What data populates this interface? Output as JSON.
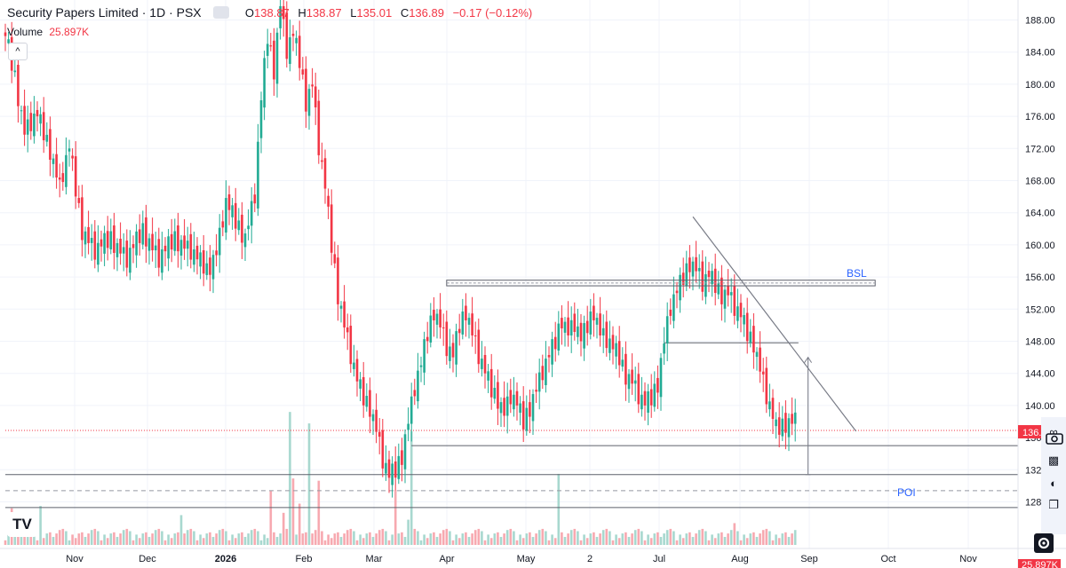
{
  "legend": {
    "symbol_title": "Security Papers Limited · 1D · PSX",
    "open_label": "O",
    "open": "138.87",
    "high_label": "H",
    "high": "138.87",
    "low_label": "L",
    "low": "135.01",
    "close_label": "C",
    "close": "136.89",
    "change": "−0.17 (−0.12%)",
    "volume_label": "Volume",
    "volume_value": "25.897K"
  },
  "collapse_label": "^",
  "logo_text": "TV",
  "colors": {
    "up": "#22ab94",
    "down": "#f23645",
    "up_volume": "#a8d8cf",
    "down_volume": "#f7a9b0",
    "grid": "#f0f3fa",
    "axis_text": "#131722",
    "annotation_blue": "#2962ff",
    "drawing_line": "#787b86"
  },
  "annotations": {
    "bsl": "BSL",
    "poi": "POI"
  },
  "price_badges": {
    "last_price": "136.",
    "last_volume": "25.897K"
  },
  "chart_data": {
    "type": "candlestick",
    "title": "Security Papers Limited · 1D · PSX",
    "ylim": [
      123,
      190
    ],
    "y_ticks": [
      188,
      184,
      180,
      176,
      172,
      168,
      164,
      160,
      156,
      152,
      148,
      144,
      140,
      136,
      132,
      128
    ],
    "y_tick_labels": [
      "188.00",
      "184.00",
      "180.00",
      "176.00",
      "172.00",
      "168.00",
      "164.00",
      "160.00",
      "156.00",
      "152.00",
      "148.00",
      "144.00",
      "140.00",
      "136.",
      "132.00",
      "128.00"
    ],
    "x_tick_labels": [
      "Nov",
      "Dec",
      "2026",
      "Feb",
      "Mar",
      "Apr",
      "May",
      "2",
      "Jul",
      "Aug",
      "Sep",
      "Oct",
      "Nov"
    ],
    "anchors": [
      [
        0,
        186
      ],
      [
        3,
        181
      ],
      [
        6,
        174
      ],
      [
        10,
        176
      ],
      [
        14,
        172
      ],
      [
        17,
        167
      ],
      [
        20,
        172
      ],
      [
        24,
        162
      ],
      [
        28,
        159
      ],
      [
        33,
        161
      ],
      [
        38,
        158
      ],
      [
        43,
        162
      ],
      [
        48,
        158
      ],
      [
        53,
        161
      ],
      [
        58,
        159
      ],
      [
        63,
        157
      ],
      [
        66,
        159
      ],
      [
        69,
        165
      ],
      [
        72,
        163
      ],
      [
        75,
        161
      ],
      [
        78,
        166
      ],
      [
        80,
        178
      ],
      [
        82,
        186
      ],
      [
        84,
        182
      ],
      [
        86,
        190
      ],
      [
        88,
        184
      ],
      [
        90,
        186
      ],
      [
        92,
        183
      ],
      [
        94,
        178
      ],
      [
        96,
        180
      ],
      [
        98,
        172
      ],
      [
        100,
        167
      ],
      [
        102,
        160
      ],
      [
        104,
        154
      ],
      [
        106,
        150
      ],
      [
        108,
        146
      ],
      [
        110,
        143
      ],
      [
        112,
        141
      ],
      [
        114,
        140
      ],
      [
        116,
        137
      ],
      [
        118,
        133
      ],
      [
        120,
        131
      ],
      [
        122,
        132
      ],
      [
        124,
        134
      ],
      [
        126,
        138
      ],
      [
        128,
        142
      ],
      [
        130,
        145
      ],
      [
        132,
        149
      ],
      [
        134,
        152
      ],
      [
        136,
        150
      ],
      [
        138,
        147
      ],
      [
        140,
        146
      ],
      [
        142,
        150
      ],
      [
        144,
        152
      ],
      [
        146,
        149
      ],
      [
        148,
        146
      ],
      [
        150,
        144
      ],
      [
        152,
        142
      ],
      [
        154,
        141
      ],
      [
        156,
        139
      ],
      [
        158,
        141
      ],
      [
        160,
        140
      ],
      [
        162,
        138
      ],
      [
        164,
        140
      ],
      [
        166,
        142
      ],
      [
        168,
        144
      ],
      [
        170,
        146
      ],
      [
        172,
        148
      ],
      [
        174,
        151
      ],
      [
        176,
        149
      ],
      [
        178,
        150
      ],
      [
        180,
        148
      ],
      [
        182,
        150
      ],
      [
        184,
        152
      ],
      [
        186,
        149
      ],
      [
        188,
        148
      ],
      [
        190,
        147
      ],
      [
        192,
        146
      ],
      [
        194,
        144
      ],
      [
        196,
        143
      ],
      [
        198,
        141
      ],
      [
        200,
        140
      ],
      [
        202,
        141
      ],
      [
        204,
        143
      ],
      [
        206,
        148
      ],
      [
        208,
        152
      ],
      [
        210,
        154
      ],
      [
        212,
        156
      ],
      [
        214,
        158
      ],
      [
        216,
        157
      ],
      [
        218,
        155
      ],
      [
        220,
        156
      ],
      [
        222,
        155
      ],
      [
        224,
        154
      ],
      [
        226,
        154
      ],
      [
        228,
        152
      ],
      [
        230,
        151
      ],
      [
        232,
        149
      ],
      [
        234,
        148
      ],
      [
        238,
        141
      ],
      [
        241,
        137
      ],
      [
        244,
        138
      ],
      [
        247,
        138
      ]
    ],
    "pattern": [
      0.0,
      0.9,
      -0.7,
      0.5,
      -1.0,
      0.3,
      -0.2,
      0.8,
      -0.6,
      0.6
    ],
    "volume": {
      "label": "Volume",
      "base_min": 0.4,
      "base_range": 1.0,
      "spikes": [
        [
          2,
          3.2
        ],
        [
          11,
          3.4
        ],
        [
          55,
          2.6
        ],
        [
          83,
          4.7
        ],
        [
          87,
          2.8
        ],
        [
          89,
          11.6
        ],
        [
          90,
          5.8
        ],
        [
          92,
          3.6
        ],
        [
          95,
          10.6
        ],
        [
          98,
          5.6
        ],
        [
          122,
          4.8
        ],
        [
          126,
          2.2
        ],
        [
          127,
          9.9
        ],
        [
          173,
          6.2
        ],
        [
          228,
          1.9
        ]
      ],
      "max": 12
    },
    "levels": [
      {
        "name": "support-level",
        "y": 135.0,
        "x_start": 127
      },
      {
        "name": "level-131",
        "y": 131.4,
        "x_start": 0
      },
      {
        "name": "level-127",
        "y": 127.3,
        "x_start": 0
      },
      {
        "name": "poi-level",
        "y": 129.4,
        "x_start": 0,
        "dashed": true
      },
      {
        "name": "last-price-level",
        "y": 136.89,
        "x_start": 0,
        "dotted": true
      },
      {
        "name": "aug-low-level",
        "y": 147.8,
        "x_start": 206,
        "x_end": 248
      }
    ],
    "bsl_zone": {
      "y_low": 154.9,
      "y_high": 155.6,
      "x_start": 138,
      "x_end": 272
    },
    "trendline": {
      "from": [
        215,
        163.5
      ],
      "to": [
        266,
        136.8
      ]
    },
    "projection_arrow": {
      "x": 251,
      "y_from": 131.4,
      "y_to": 146.0
    }
  }
}
